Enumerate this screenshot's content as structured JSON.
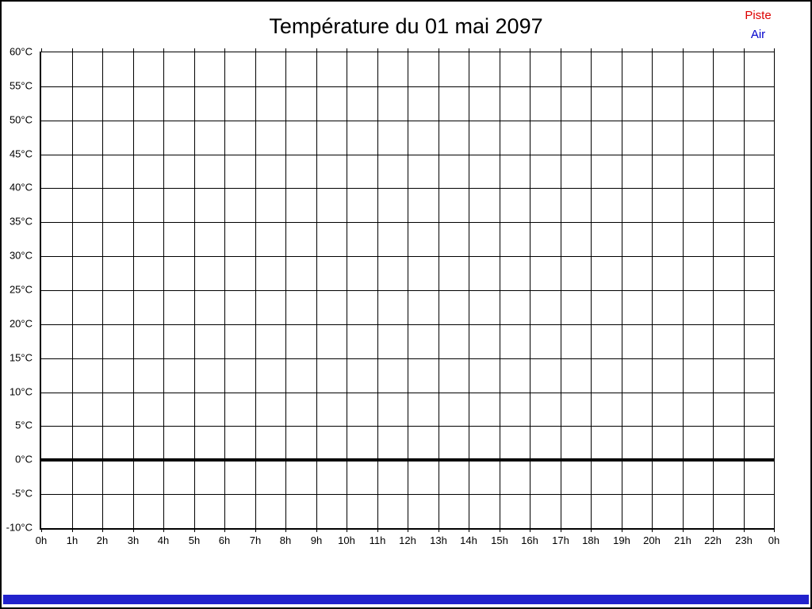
{
  "window": {
    "title": "Température du 01 mai 2097"
  },
  "legend": {
    "items": [
      {
        "label": "Piste",
        "color": "#dd0000"
      },
      {
        "label": "Air",
        "color": "#0000cc"
      }
    ]
  },
  "chart_data": {
    "type": "line",
    "title": "Température du 01 mai 2097",
    "xlabel": "",
    "ylabel": "",
    "x_axis": {
      "tick_labels": [
        "0h",
        "1h",
        "2h",
        "3h",
        "4h",
        "5h",
        "6h",
        "7h",
        "8h",
        "9h",
        "10h",
        "11h",
        "12h",
        "13h",
        "14h",
        "15h",
        "16h",
        "17h",
        "18h",
        "19h",
        "20h",
        "21h",
        "22h",
        "23h",
        "0h"
      ],
      "columns": 24
    },
    "y_axis": {
      "tick_labels": [
        "60°C",
        "55°C",
        "50°C",
        "45°C",
        "40°C",
        "35°C",
        "30°C",
        "25°C",
        "20°C",
        "15°C",
        "10°C",
        "5°C",
        "0°C",
        "-5°C",
        "-10°C"
      ],
      "min": -10,
      "max": 60,
      "step": 5,
      "unit": "°C"
    },
    "grid": true,
    "legend_position": "top-right",
    "series": [
      {
        "name": "Piste",
        "color": "#dd0000",
        "values": []
      },
      {
        "name": "Air",
        "color": "#0000cc",
        "values": []
      }
    ],
    "annotations": [
      {
        "type": "zero_line",
        "y": 0,
        "color": "#000000",
        "note": "thick black horizontal line at 0°C; no data series plotted"
      }
    ]
  },
  "footer": {
    "bar_color": "#2222cc"
  }
}
